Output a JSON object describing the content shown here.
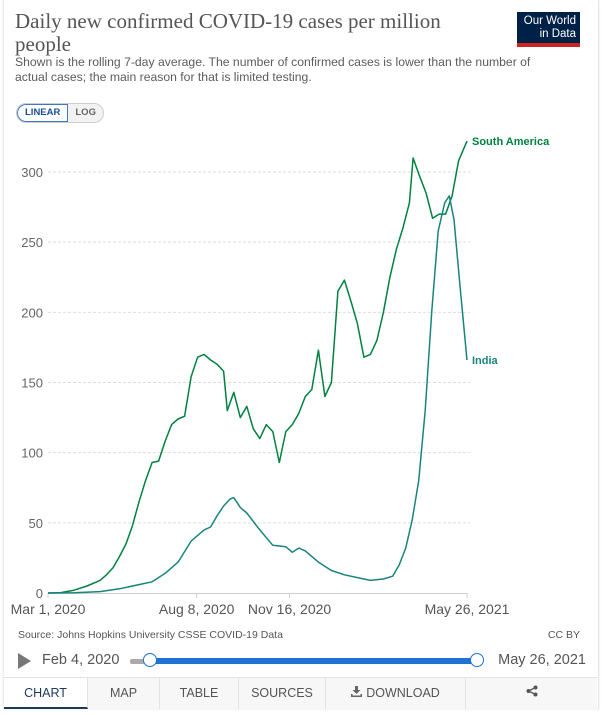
{
  "header": {
    "title": "Daily new confirmed COVID-19 cases per million people",
    "subtitle": "Shown is the rolling 7-day average. The number of confirmed cases is lower than the number of actual cases; the main reason for that is limited testing.",
    "logo_line1": "Our World",
    "logo_line2": "in Data",
    "logo_colors": {
      "background": "#002147",
      "stripe": "#ce261e"
    }
  },
  "scale_toggle": {
    "options": [
      "LINEAR",
      "LOG"
    ],
    "selected": "LINEAR"
  },
  "chart_data": {
    "type": "line",
    "title": "Daily new confirmed COVID-19 cases per million people",
    "xlabel": "",
    "ylabel": "",
    "x_range": [
      "2020-03-01",
      "2021-05-26"
    ],
    "ylim": [
      0,
      320
    ],
    "y_ticks": [
      0,
      50,
      100,
      150,
      200,
      250,
      300
    ],
    "x_tick_labels": [
      "Mar 1, 2020",
      "Aug 8, 2020",
      "Nov 16, 2020",
      "May 26, 2021"
    ],
    "x_tick_dates": [
      "2020-03-01",
      "2020-08-08",
      "2020-11-16",
      "2021-05-26"
    ],
    "grid": "horizontal dashed",
    "legend": "inline labels at line ends (right)",
    "series": [
      {
        "name": "South America",
        "color": "#00813f",
        "points": [
          [
            "2020-03-01",
            0
          ],
          [
            "2020-03-15",
            0.3
          ],
          [
            "2020-03-29",
            2
          ],
          [
            "2020-04-12",
            5
          ],
          [
            "2020-04-26",
            9
          ],
          [
            "2020-05-03",
            13
          ],
          [
            "2020-05-10",
            18
          ],
          [
            "2020-05-17",
            26
          ],
          [
            "2020-05-24",
            35
          ],
          [
            "2020-05-31",
            48
          ],
          [
            "2020-06-07",
            65
          ],
          [
            "2020-06-14",
            80
          ],
          [
            "2020-06-21",
            93
          ],
          [
            "2020-06-28",
            94
          ],
          [
            "2020-07-05",
            108
          ],
          [
            "2020-07-12",
            120
          ],
          [
            "2020-07-19",
            124
          ],
          [
            "2020-07-26",
            126
          ],
          [
            "2020-08-02",
            154
          ],
          [
            "2020-08-09",
            168
          ],
          [
            "2020-08-16",
            170
          ],
          [
            "2020-08-23",
            166
          ],
          [
            "2020-08-30",
            163
          ],
          [
            "2020-09-06",
            158
          ],
          [
            "2020-09-10",
            130
          ],
          [
            "2020-09-17",
            143
          ],
          [
            "2020-09-24",
            125
          ],
          [
            "2020-10-01",
            133
          ],
          [
            "2020-10-08",
            117
          ],
          [
            "2020-10-15",
            110
          ],
          [
            "2020-10-22",
            120
          ],
          [
            "2020-10-29",
            115
          ],
          [
            "2020-11-05",
            93
          ],
          [
            "2020-11-12",
            115
          ],
          [
            "2020-11-19",
            120
          ],
          [
            "2020-11-26",
            128
          ],
          [
            "2020-12-03",
            140
          ],
          [
            "2020-12-10",
            145
          ],
          [
            "2020-12-17",
            173
          ],
          [
            "2020-12-24",
            140
          ],
          [
            "2020-12-31",
            150
          ],
          [
            "2021-01-07",
            215
          ],
          [
            "2021-01-14",
            223
          ],
          [
            "2021-01-21",
            208
          ],
          [
            "2021-01-28",
            192
          ],
          [
            "2021-02-04",
            168
          ],
          [
            "2021-02-11",
            170
          ],
          [
            "2021-02-18",
            180
          ],
          [
            "2021-02-25",
            200
          ],
          [
            "2021-03-04",
            225
          ],
          [
            "2021-03-11",
            245
          ],
          [
            "2021-03-18",
            260
          ],
          [
            "2021-03-25",
            278
          ],
          [
            "2021-03-29",
            310
          ],
          [
            "2021-04-05",
            297
          ],
          [
            "2021-04-12",
            285
          ],
          [
            "2021-04-19",
            267
          ],
          [
            "2021-04-26",
            270
          ],
          [
            "2021-05-03",
            270
          ],
          [
            "2021-05-10",
            283
          ],
          [
            "2021-05-17",
            308
          ],
          [
            "2021-05-26",
            322
          ]
        ]
      },
      {
        "name": "India",
        "color": "#18847e",
        "points": [
          [
            "2020-03-01",
            0
          ],
          [
            "2020-03-29",
            0.2
          ],
          [
            "2020-04-26",
            1
          ],
          [
            "2020-05-17",
            3
          ],
          [
            "2020-06-07",
            6
          ],
          [
            "2020-06-21",
            8
          ],
          [
            "2020-07-05",
            14
          ],
          [
            "2020-07-19",
            22
          ],
          [
            "2020-08-02",
            37
          ],
          [
            "2020-08-16",
            45
          ],
          [
            "2020-08-23",
            47
          ],
          [
            "2020-08-30",
            55
          ],
          [
            "2020-09-06",
            62
          ],
          [
            "2020-09-13",
            67
          ],
          [
            "2020-09-17",
            68
          ],
          [
            "2020-09-24",
            61
          ],
          [
            "2020-10-01",
            57
          ],
          [
            "2020-10-15",
            45
          ],
          [
            "2020-10-29",
            34
          ],
          [
            "2020-11-12",
            33
          ],
          [
            "2020-11-19",
            29
          ],
          [
            "2020-11-26",
            32
          ],
          [
            "2020-12-03",
            30
          ],
          [
            "2020-12-17",
            22
          ],
          [
            "2020-12-31",
            16
          ],
          [
            "2021-01-14",
            13
          ],
          [
            "2021-01-28",
            11
          ],
          [
            "2021-02-11",
            9
          ],
          [
            "2021-02-25",
            10
          ],
          [
            "2021-03-07",
            12
          ],
          [
            "2021-03-14",
            20
          ],
          [
            "2021-03-21",
            32
          ],
          [
            "2021-03-28",
            52
          ],
          [
            "2021-04-04",
            80
          ],
          [
            "2021-04-11",
            130
          ],
          [
            "2021-04-18",
            200
          ],
          [
            "2021-04-25",
            258
          ],
          [
            "2021-05-02",
            278
          ],
          [
            "2021-05-07",
            283
          ],
          [
            "2021-05-12",
            266
          ],
          [
            "2021-05-19",
            215
          ],
          [
            "2021-05-26",
            166
          ]
        ]
      }
    ]
  },
  "footer": {
    "source": "Source: Johns Hopkins University CSSE COVID-19 Data",
    "license": "CC BY"
  },
  "timeline": {
    "start_label": "Feb 4, 2020",
    "end_label": "May 26, 2021",
    "play_icon": "play-icon"
  },
  "tabs": [
    {
      "label": "CHART",
      "active": true
    },
    {
      "label": "MAP",
      "active": false
    },
    {
      "label": "TABLE",
      "active": false
    },
    {
      "label": "SOURCES",
      "active": false
    },
    {
      "label": "DOWNLOAD",
      "active": false,
      "icon": "download-icon"
    },
    {
      "label": "",
      "active": false,
      "icon": "share-icon"
    }
  ]
}
